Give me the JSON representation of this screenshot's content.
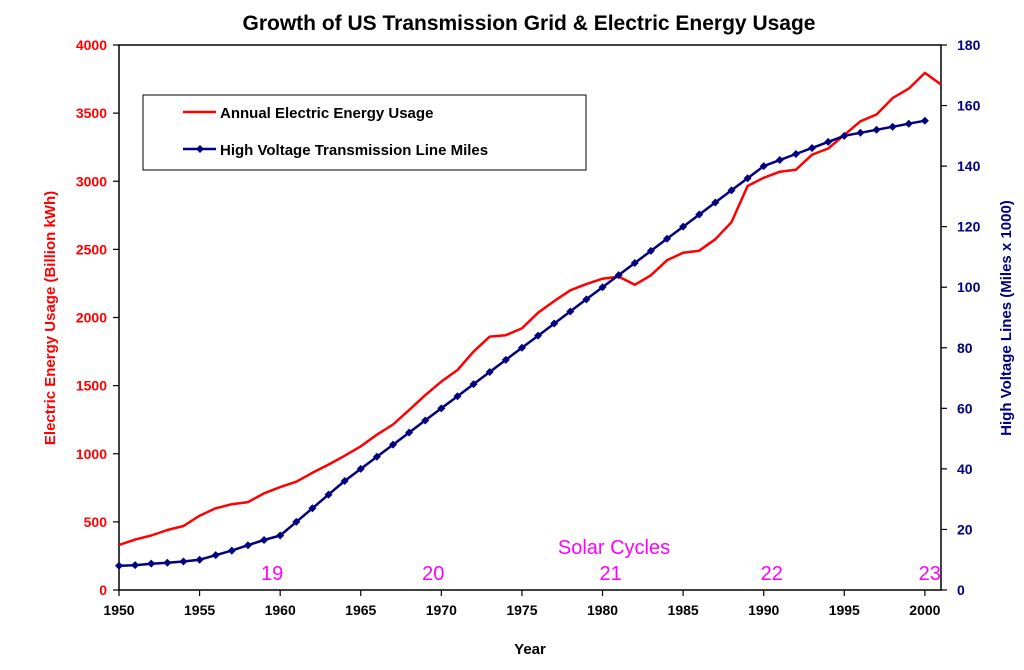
{
  "chart_data": {
    "type": "line",
    "title": "Growth of US Transmission Grid & Electric Energy Usage",
    "xlabel": "Year",
    "ylabel_left": "Electric Energy Usage (Billion kWh)",
    "ylabel_right": "High Voltage Lines (Miles x 1000)",
    "xlim": [
      1950,
      2001
    ],
    "ylim_left": [
      0,
      4000
    ],
    "ylim_right": [
      0,
      180
    ],
    "x_ticks": [
      1950,
      1955,
      1960,
      1965,
      1970,
      1975,
      1980,
      1985,
      1990,
      1995,
      2000
    ],
    "y_ticks_left": [
      0,
      500,
      1000,
      1500,
      2000,
      2500,
      3000,
      3500,
      4000
    ],
    "y_ticks_right": [
      0,
      20,
      40,
      60,
      80,
      100,
      120,
      140,
      160,
      180
    ],
    "grid": false,
    "legend_position": "top-left",
    "colors": {
      "usage": "#ff0000",
      "lines": "#000080",
      "annotation": "#ff00ff"
    },
    "series": [
      {
        "name": "Annual Electric Energy Usage",
        "axis": "left",
        "x": [
          1950,
          1951,
          1952,
          1953,
          1954,
          1955,
          1956,
          1957,
          1958,
          1959,
          1960,
          1961,
          1962,
          1963,
          1964,
          1965,
          1966,
          1967,
          1968,
          1969,
          1970,
          1971,
          1972,
          1973,
          1974,
          1975,
          1976,
          1977,
          1978,
          1979,
          1980,
          1981,
          1982,
          1983,
          1984,
          1985,
          1986,
          1987,
          1988,
          1989,
          1990,
          1991,
          1992,
          1993,
          1994,
          1995,
          1996,
          1997,
          1998,
          1999,
          2000,
          2001
        ],
        "values": [
          330,
          370,
          400,
          440,
          470,
          545,
          600,
          630,
          645,
          710,
          755,
          795,
          860,
          920,
          985,
          1055,
          1140,
          1215,
          1320,
          1430,
          1530,
          1615,
          1750,
          1860,
          1870,
          1920,
          2035,
          2120,
          2200,
          2245,
          2285,
          2300,
          2240,
          2310,
          2420,
          2475,
          2490,
          2575,
          2700,
          2965,
          3025,
          3070,
          3085,
          3195,
          3240,
          3340,
          3440,
          3490,
          3610,
          3680,
          3795,
          3710
        ]
      },
      {
        "name": "High Voltage Transmission Line Miles",
        "axis": "right",
        "x": [
          1950,
          1951,
          1952,
          1953,
          1954,
          1955,
          1956,
          1957,
          1958,
          1959,
          1960,
          1961,
          1962,
          1963,
          1964,
          1965,
          1966,
          1967,
          1968,
          1969,
          1970,
          1971,
          1972,
          1973,
          1974,
          1975,
          1976,
          1977,
          1978,
          1979,
          1980,
          1981,
          1982,
          1983,
          1984,
          1985,
          1986,
          1987,
          1988,
          1989,
          1990,
          1991,
          1992,
          1993,
          1994,
          1995,
          1996,
          1997,
          1998,
          1999,
          2000
        ],
        "values": [
          8,
          8.2,
          8.7,
          9,
          9.4,
          10,
          11.5,
          13,
          14.8,
          16.5,
          18,
          22.5,
          27,
          31.5,
          36,
          40,
          44,
          48,
          52,
          56,
          60,
          64,
          68,
          72,
          76,
          80,
          84,
          88,
          92,
          96,
          100,
          104,
          108,
          112,
          116,
          120,
          124,
          128,
          132,
          136,
          140,
          142,
          144,
          146,
          148,
          150,
          151,
          152,
          153,
          154,
          155
        ]
      }
    ],
    "annotations": {
      "heading": "Solar Cycles",
      "cycles": [
        {
          "label": "19",
          "x": 1959.5
        },
        {
          "label": "20",
          "x": 1969.5
        },
        {
          "label": "21",
          "x": 1980.5
        },
        {
          "label": "22",
          "x": 1990.5
        },
        {
          "label": "23",
          "x": 2000.3
        }
      ]
    }
  }
}
